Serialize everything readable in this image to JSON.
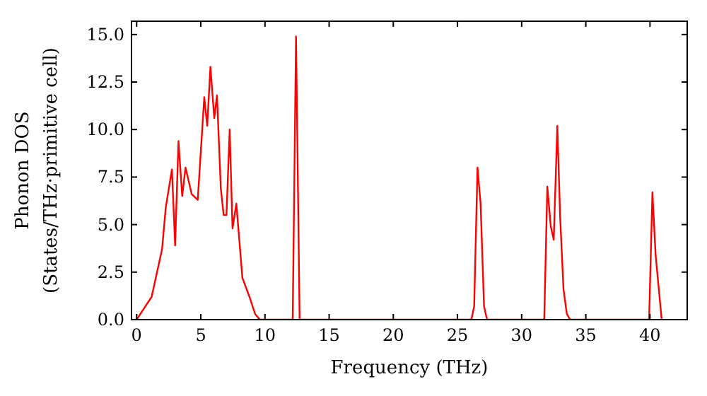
{
  "chart_data": {
    "type": "line",
    "xlabel": "Frequency (THz)",
    "ylabel": "Phonon DOS\n(States/THz·primitive cell)",
    "x": [
      0,
      0.44,
      1.17,
      1.98,
      2.27,
      2.75,
      3.0,
      3.26,
      3.55,
      3.81,
      4.29,
      4.76,
      5.27,
      5.5,
      5.75,
      6.05,
      6.26,
      6.56,
      6.78,
      7.0,
      7.25,
      7.47,
      7.77,
      8.24,
      8.79,
      9.23,
      9.6,
      12.16,
      12.42,
      12.7,
      26.08,
      26.3,
      26.56,
      26.8,
      27.07,
      27.3,
      31.76,
      32.0,
      32.27,
      32.5,
      32.78,
      33.0,
      33.26,
      33.52,
      33.77,
      39.93,
      40.19,
      40.44,
      40.91
    ],
    "series": [
      {
        "color": "#ff0000",
        "values": [
          0,
          0.45,
          1.2,
          3.7,
          5.9,
          7.9,
          3.9,
          9.4,
          6.5,
          8.0,
          6.6,
          6.3,
          11.7,
          10.2,
          13.3,
          10.6,
          11.8,
          6.9,
          5.5,
          5.5,
          10.0,
          4.8,
          6.1,
          2.2,
          1.2,
          0.3,
          0,
          0,
          14.9,
          0,
          0,
          0.7,
          8.0,
          6.1,
          0.7,
          0,
          0,
          7.0,
          4.9,
          4.2,
          10.2,
          5.4,
          1.6,
          0.3,
          0,
          0,
          6.7,
          3.4,
          0
        ]
      }
    ],
    "xlim": [
      -0.4,
      42.9
    ],
    "ylim": [
      0,
      15.7
    ],
    "xticks": [
      0,
      5,
      10,
      15,
      20,
      25,
      30,
      35,
      40
    ],
    "yticks": [
      {
        "value": 0,
        "label": "0.0"
      },
      {
        "value": 2.5,
        "label": "2.5"
      },
      {
        "value": 5,
        "label": "5.0"
      },
      {
        "value": 7.5,
        "label": "7.5"
      },
      {
        "value": 10,
        "label": "10.0"
      },
      {
        "value": 12.5,
        "label": "12.5"
      },
      {
        "value": 15,
        "label": "15.0"
      }
    ],
    "grid": false,
    "line_style": "solid",
    "marker": "none"
  }
}
